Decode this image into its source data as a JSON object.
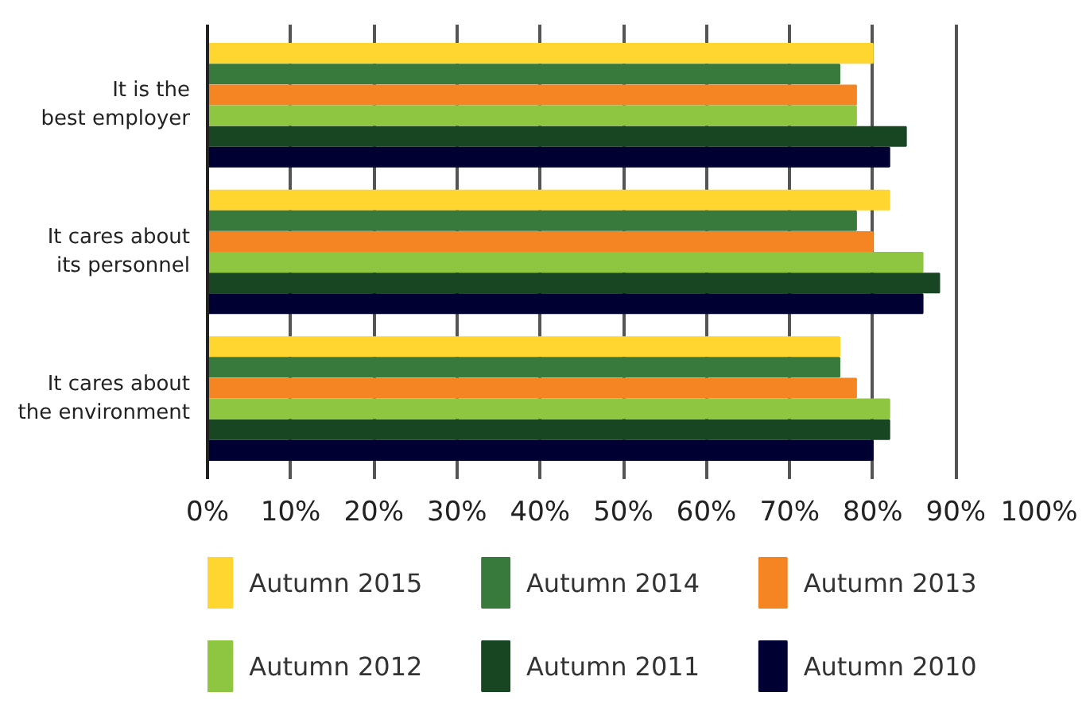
{
  "chart_data": {
    "type": "bar",
    "orientation": "horizontal",
    "categories": [
      "It is the\nbest employer",
      "It cares about\nits personnel",
      "It cares about\nthe environment"
    ],
    "series": [
      {
        "name": "Autumn 2015",
        "color": "#ffd530",
        "values": [
          80,
          82,
          76
        ]
      },
      {
        "name": "Autumn 2014",
        "color": "#38793c",
        "values": [
          76,
          78,
          76
        ]
      },
      {
        "name": "Autumn 2013",
        "color": "#f58423",
        "values": [
          78,
          80,
          78
        ]
      },
      {
        "name": "Autumn 2012",
        "color": "#8fc641",
        "values": [
          78,
          86,
          82
        ]
      },
      {
        "name": "Autumn 2011",
        "color": "#184623",
        "values": [
          84,
          88,
          82
        ]
      },
      {
        "name": "Autumn 2010",
        "color": "#010033",
        "values": [
          82,
          86,
          80
        ]
      }
    ],
    "xlim": [
      0,
      100
    ],
    "xticks": [
      {
        "value": 0,
        "label": "0%"
      },
      {
        "value": 10,
        "label": "10%"
      },
      {
        "value": 20,
        "label": "20%"
      },
      {
        "value": 30,
        "label": "30%"
      },
      {
        "value": 40,
        "label": "40%"
      },
      {
        "value": 50,
        "label": "50%"
      },
      {
        "value": 60,
        "label": "60%"
      },
      {
        "value": 70,
        "label": "70%"
      },
      {
        "value": 80,
        "label": "80%"
      },
      {
        "value": 90,
        "label": "90%"
      },
      {
        "value": 100,
        "label": "100%"
      }
    ],
    "grid": "x",
    "legend": "bottom"
  }
}
